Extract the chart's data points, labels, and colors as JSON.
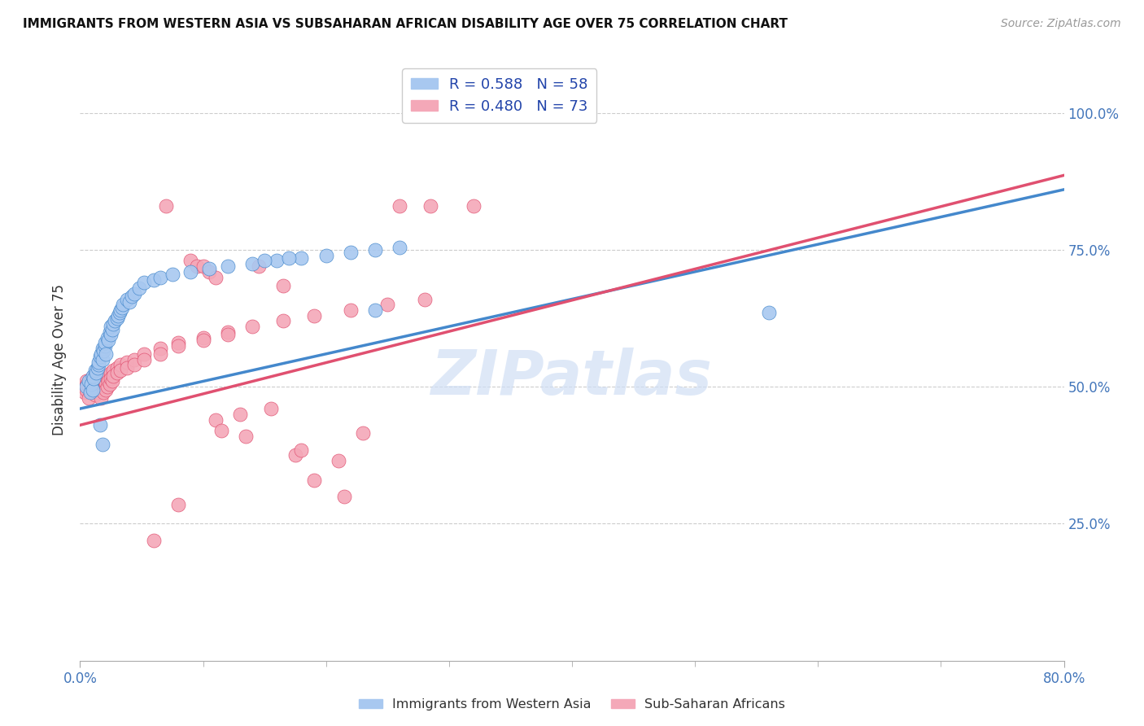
{
  "title": "IMMIGRANTS FROM WESTERN ASIA VS SUBSAHARAN AFRICAN DISABILITY AGE OVER 75 CORRELATION CHART",
  "source": "Source: ZipAtlas.com",
  "ylabel": "Disability Age Over 75",
  "ytick_labels": [
    "100.0%",
    "75.0%",
    "50.0%",
    "25.0%"
  ],
  "ytick_values": [
    1.0,
    0.75,
    0.5,
    0.25
  ],
  "xmin": 0.0,
  "xmax": 0.8,
  "ymin": 0.0,
  "ymax": 1.1,
  "legend1_color": "#a8c8f0",
  "legend2_color": "#f4a8b8",
  "line1_color": "#4488cc",
  "line2_color": "#e05070",
  "watermark": "ZIPatlas",
  "watermark_color": "#d0dff5",
  "blue_points": [
    [
      0.005,
      0.5
    ],
    [
      0.007,
      0.51
    ],
    [
      0.008,
      0.49
    ],
    [
      0.009,
      0.505
    ],
    [
      0.01,
      0.495
    ],
    [
      0.01,
      0.52
    ],
    [
      0.011,
      0.515
    ],
    [
      0.012,
      0.53
    ],
    [
      0.013,
      0.525
    ],
    [
      0.014,
      0.535
    ],
    [
      0.015,
      0.54
    ],
    [
      0.015,
      0.545
    ],
    [
      0.016,
      0.555
    ],
    [
      0.017,
      0.56
    ],
    [
      0.018,
      0.55
    ],
    [
      0.018,
      0.57
    ],
    [
      0.019,
      0.565
    ],
    [
      0.02,
      0.575
    ],
    [
      0.02,
      0.58
    ],
    [
      0.021,
      0.56
    ],
    [
      0.022,
      0.59
    ],
    [
      0.023,
      0.585
    ],
    [
      0.024,
      0.6
    ],
    [
      0.025,
      0.595
    ],
    [
      0.025,
      0.61
    ],
    [
      0.026,
      0.605
    ],
    [
      0.027,
      0.615
    ],
    [
      0.028,
      0.62
    ],
    [
      0.03,
      0.625
    ],
    [
      0.031,
      0.63
    ],
    [
      0.032,
      0.635
    ],
    [
      0.033,
      0.64
    ],
    [
      0.034,
      0.645
    ],
    [
      0.035,
      0.65
    ],
    [
      0.038,
      0.66
    ],
    [
      0.04,
      0.655
    ],
    [
      0.042,
      0.665
    ],
    [
      0.044,
      0.67
    ],
    [
      0.048,
      0.68
    ],
    [
      0.052,
      0.69
    ],
    [
      0.06,
      0.695
    ],
    [
      0.065,
      0.7
    ],
    [
      0.075,
      0.705
    ],
    [
      0.09,
      0.71
    ],
    [
      0.105,
      0.715
    ],
    [
      0.12,
      0.72
    ],
    [
      0.14,
      0.725
    ],
    [
      0.16,
      0.73
    ],
    [
      0.18,
      0.735
    ],
    [
      0.2,
      0.74
    ],
    [
      0.22,
      0.745
    ],
    [
      0.24,
      0.75
    ],
    [
      0.26,
      0.755
    ],
    [
      0.016,
      0.43
    ],
    [
      0.018,
      0.395
    ],
    [
      0.24,
      0.64
    ],
    [
      0.15,
      0.73
    ],
    [
      0.17,
      0.735
    ],
    [
      0.56,
      0.635
    ]
  ],
  "pink_points": [
    [
      0.003,
      0.5
    ],
    [
      0.004,
      0.49
    ],
    [
      0.005,
      0.51
    ],
    [
      0.005,
      0.495
    ],
    [
      0.006,
      0.505
    ],
    [
      0.007,
      0.5
    ],
    [
      0.007,
      0.48
    ],
    [
      0.008,
      0.495
    ],
    [
      0.009,
      0.505
    ],
    [
      0.009,
      0.515
    ],
    [
      0.01,
      0.5
    ],
    [
      0.011,
      0.51
    ],
    [
      0.011,
      0.495
    ],
    [
      0.012,
      0.52
    ],
    [
      0.012,
      0.485
    ],
    [
      0.013,
      0.505
    ],
    [
      0.014,
      0.515
    ],
    [
      0.014,
      0.5
    ],
    [
      0.015,
      0.51
    ],
    [
      0.015,
      0.49
    ],
    [
      0.016,
      0.505
    ],
    [
      0.016,
      0.495
    ],
    [
      0.017,
      0.515
    ],
    [
      0.017,
      0.48
    ],
    [
      0.018,
      0.51
    ],
    [
      0.018,
      0.495
    ],
    [
      0.019,
      0.505
    ],
    [
      0.019,
      0.49
    ],
    [
      0.02,
      0.5
    ],
    [
      0.02,
      0.51
    ],
    [
      0.021,
      0.505
    ],
    [
      0.021,
      0.495
    ],
    [
      0.022,
      0.515
    ],
    [
      0.022,
      0.5
    ],
    [
      0.023,
      0.52
    ],
    [
      0.023,
      0.51
    ],
    [
      0.024,
      0.505
    ],
    [
      0.025,
      0.525
    ],
    [
      0.025,
      0.515
    ],
    [
      0.026,
      0.51
    ],
    [
      0.027,
      0.53
    ],
    [
      0.027,
      0.52
    ],
    [
      0.03,
      0.535
    ],
    [
      0.03,
      0.525
    ],
    [
      0.033,
      0.54
    ],
    [
      0.033,
      0.53
    ],
    [
      0.038,
      0.545
    ],
    [
      0.038,
      0.535
    ],
    [
      0.044,
      0.55
    ],
    [
      0.044,
      0.54
    ],
    [
      0.052,
      0.56
    ],
    [
      0.052,
      0.55
    ],
    [
      0.065,
      0.57
    ],
    [
      0.065,
      0.56
    ],
    [
      0.08,
      0.58
    ],
    [
      0.08,
      0.575
    ],
    [
      0.1,
      0.59
    ],
    [
      0.1,
      0.585
    ],
    [
      0.12,
      0.6
    ],
    [
      0.12,
      0.595
    ],
    [
      0.14,
      0.61
    ],
    [
      0.165,
      0.62
    ],
    [
      0.19,
      0.63
    ],
    [
      0.22,
      0.64
    ],
    [
      0.25,
      0.65
    ],
    [
      0.28,
      0.66
    ],
    [
      0.06,
      0.22
    ],
    [
      0.08,
      0.285
    ],
    [
      0.11,
      0.44
    ],
    [
      0.115,
      0.42
    ],
    [
      0.13,
      0.45
    ],
    [
      0.135,
      0.41
    ],
    [
      0.155,
      0.46
    ],
    [
      0.175,
      0.375
    ],
    [
      0.18,
      0.385
    ],
    [
      0.21,
      0.365
    ],
    [
      0.215,
      0.3
    ],
    [
      0.07,
      0.83
    ],
    [
      0.23,
      0.415
    ],
    [
      0.26,
      0.83
    ],
    [
      0.285,
      0.83
    ],
    [
      0.32,
      0.83
    ],
    [
      0.19,
      0.33
    ],
    [
      0.165,
      0.685
    ],
    [
      0.145,
      0.72
    ],
    [
      0.09,
      0.73
    ],
    [
      0.095,
      0.72
    ],
    [
      0.1,
      0.72
    ],
    [
      0.105,
      0.71
    ],
    [
      0.11,
      0.7
    ]
  ]
}
